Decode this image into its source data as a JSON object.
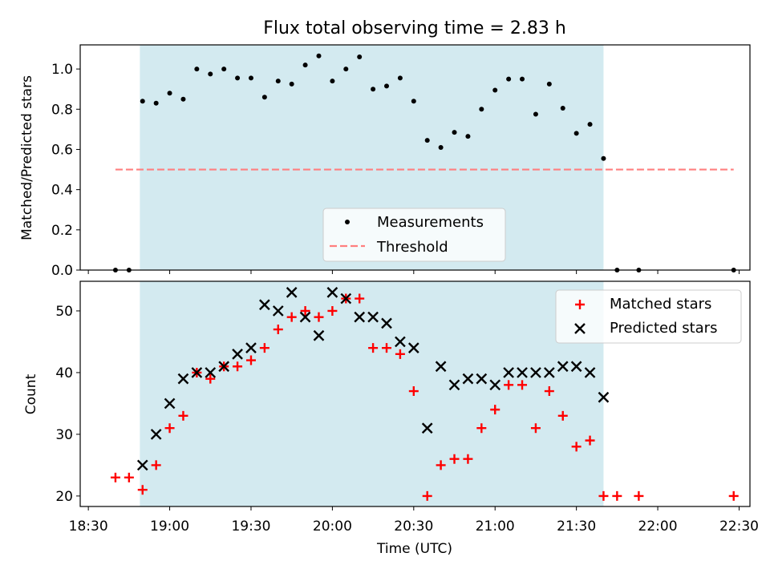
{
  "chart_data": [
    {
      "type": "scatter",
      "title": "Flux total observing time = 2.83 h",
      "ylabel": "Matched/Predicted stars",
      "xlabel": "",
      "xlim": [
        "18:27",
        "22:34"
      ],
      "ylim": [
        0,
        1.12
      ],
      "yticks": [
        "0.0",
        "0.2",
        "0.4",
        "0.6",
        "0.8",
        "1.0"
      ],
      "yticks_values": [
        0,
        0.2,
        0.4,
        0.6,
        0.8,
        1.0
      ],
      "observing_window": [
        "18:49",
        "21:40"
      ],
      "legend_position": "lower-center",
      "series": [
        {
          "name": "Measurements",
          "marker": "dot",
          "color": "#000000",
          "points": [
            [
              "18:40",
              0.0
            ],
            [
              "18:45",
              0.0
            ],
            [
              "18:50",
              0.84
            ],
            [
              "18:55",
              0.83
            ],
            [
              "19:00",
              0.88
            ],
            [
              "19:05",
              0.85
            ],
            [
              "19:10",
              1.0
            ],
            [
              "19:15",
              0.975
            ],
            [
              "19:20",
              1.0
            ],
            [
              "19:25",
              0.955
            ],
            [
              "19:30",
              0.955
            ],
            [
              "19:35",
              0.86
            ],
            [
              "19:40",
              0.94
            ],
            [
              "19:45",
              0.925
            ],
            [
              "19:50",
              1.02
            ],
            [
              "19:55",
              1.065
            ],
            [
              "20:00",
              0.94
            ],
            [
              "20:05",
              1.0
            ],
            [
              "20:10",
              1.06
            ],
            [
              "20:15",
              0.9
            ],
            [
              "20:20",
              0.915
            ],
            [
              "20:25",
              0.955
            ],
            [
              "20:30",
              0.84
            ],
            [
              "20:35",
              0.645
            ],
            [
              "20:40",
              0.61
            ],
            [
              "20:45",
              0.685
            ],
            [
              "20:50",
              0.665
            ],
            [
              "20:55",
              0.8
            ],
            [
              "21:00",
              0.895
            ],
            [
              "21:05",
              0.95
            ],
            [
              "21:10",
              0.95
            ],
            [
              "21:15",
              0.775
            ],
            [
              "21:20",
              0.925
            ],
            [
              "21:25",
              0.805
            ],
            [
              "21:30",
              0.68
            ],
            [
              "21:35",
              0.725
            ],
            [
              "21:40",
              0.555
            ],
            [
              "21:45",
              0.0
            ],
            [
              "21:53",
              0.0
            ],
            [
              "22:28",
              0.0
            ]
          ]
        },
        {
          "name": "Threshold",
          "marker": "dashed-line",
          "color": "#ff7f7f",
          "points": [
            [
              "18:40",
              0.5
            ],
            [
              "22:28",
              0.5
            ]
          ]
        }
      ]
    },
    {
      "type": "scatter",
      "title": "",
      "ylabel": "Count",
      "xlabel": "Time (UTC)",
      "xlim": [
        "18:27",
        "22:34"
      ],
      "ylim": [
        18.3,
        54.8
      ],
      "yticks": [
        "20",
        "30",
        "40",
        "50"
      ],
      "yticks_values": [
        20,
        30,
        40,
        50
      ],
      "xticks": [
        "18:30",
        "19:00",
        "19:30",
        "20:00",
        "20:30",
        "21:00",
        "21:30",
        "22:00",
        "22:30"
      ],
      "observing_window": [
        "18:49",
        "21:40"
      ],
      "legend_position": "upper-right",
      "series": [
        {
          "name": "Matched stars",
          "marker": "plus",
          "color": "#ff0000",
          "points": [
            [
              "18:40",
              23
            ],
            [
              "18:45",
              23
            ],
            [
              "18:50",
              21
            ],
            [
              "18:55",
              25
            ],
            [
              "19:00",
              31
            ],
            [
              "19:05",
              33
            ],
            [
              "19:10",
              40
            ],
            [
              "19:15",
              39
            ],
            [
              "19:20",
              41
            ],
            [
              "19:25",
              41
            ],
            [
              "19:30",
              42
            ],
            [
              "19:35",
              44
            ],
            [
              "19:40",
              47
            ],
            [
              "19:45",
              49
            ],
            [
              "19:50",
              50
            ],
            [
              "19:55",
              49
            ],
            [
              "20:00",
              50
            ],
            [
              "20:05",
              52
            ],
            [
              "20:10",
              52
            ],
            [
              "20:15",
              44
            ],
            [
              "20:20",
              44
            ],
            [
              "20:25",
              43
            ],
            [
              "20:30",
              37
            ],
            [
              "20:35",
              20
            ],
            [
              "20:40",
              25
            ],
            [
              "20:45",
              26
            ],
            [
              "20:50",
              26
            ],
            [
              "20:55",
              31
            ],
            [
              "21:00",
              34
            ],
            [
              "21:05",
              38
            ],
            [
              "21:10",
              38
            ],
            [
              "21:15",
              31
            ],
            [
              "21:20",
              37
            ],
            [
              "21:25",
              33
            ],
            [
              "21:30",
              28
            ],
            [
              "21:35",
              29
            ],
            [
              "21:40",
              20
            ],
            [
              "21:45",
              20
            ],
            [
              "21:53",
              20
            ],
            [
              "22:28",
              20
            ]
          ]
        },
        {
          "name": "Predicted stars",
          "marker": "x",
          "color": "#000000",
          "points": [
            [
              "18:50",
              25
            ],
            [
              "18:55",
              30
            ],
            [
              "19:00",
              35
            ],
            [
              "19:05",
              39
            ],
            [
              "19:10",
              40
            ],
            [
              "19:15",
              40
            ],
            [
              "19:20",
              41
            ],
            [
              "19:25",
              43
            ],
            [
              "19:30",
              44
            ],
            [
              "19:35",
              51
            ],
            [
              "19:40",
              50
            ],
            [
              "19:45",
              53
            ],
            [
              "19:50",
              49
            ],
            [
              "19:55",
              46
            ],
            [
              "20:00",
              53
            ],
            [
              "20:05",
              52
            ],
            [
              "20:10",
              49
            ],
            [
              "20:15",
              49
            ],
            [
              "20:20",
              48
            ],
            [
              "20:25",
              45
            ],
            [
              "20:30",
              44
            ],
            [
              "20:35",
              31
            ],
            [
              "20:40",
              41
            ],
            [
              "20:45",
              38
            ],
            [
              "20:50",
              39
            ],
            [
              "20:55",
              39
            ],
            [
              "21:00",
              38
            ],
            [
              "21:05",
              40
            ],
            [
              "21:10",
              40
            ],
            [
              "21:15",
              40
            ],
            [
              "21:20",
              40
            ],
            [
              "21:25",
              41
            ],
            [
              "21:30",
              41
            ],
            [
              "21:35",
              40
            ],
            [
              "21:40",
              36
            ]
          ]
        }
      ]
    }
  ],
  "colors": {
    "observing_window_fill": "#d3eaf0",
    "matched": "#ff0000",
    "predicted": "#000000",
    "threshold": "#ff7f7f",
    "measurement": "#000000"
  }
}
